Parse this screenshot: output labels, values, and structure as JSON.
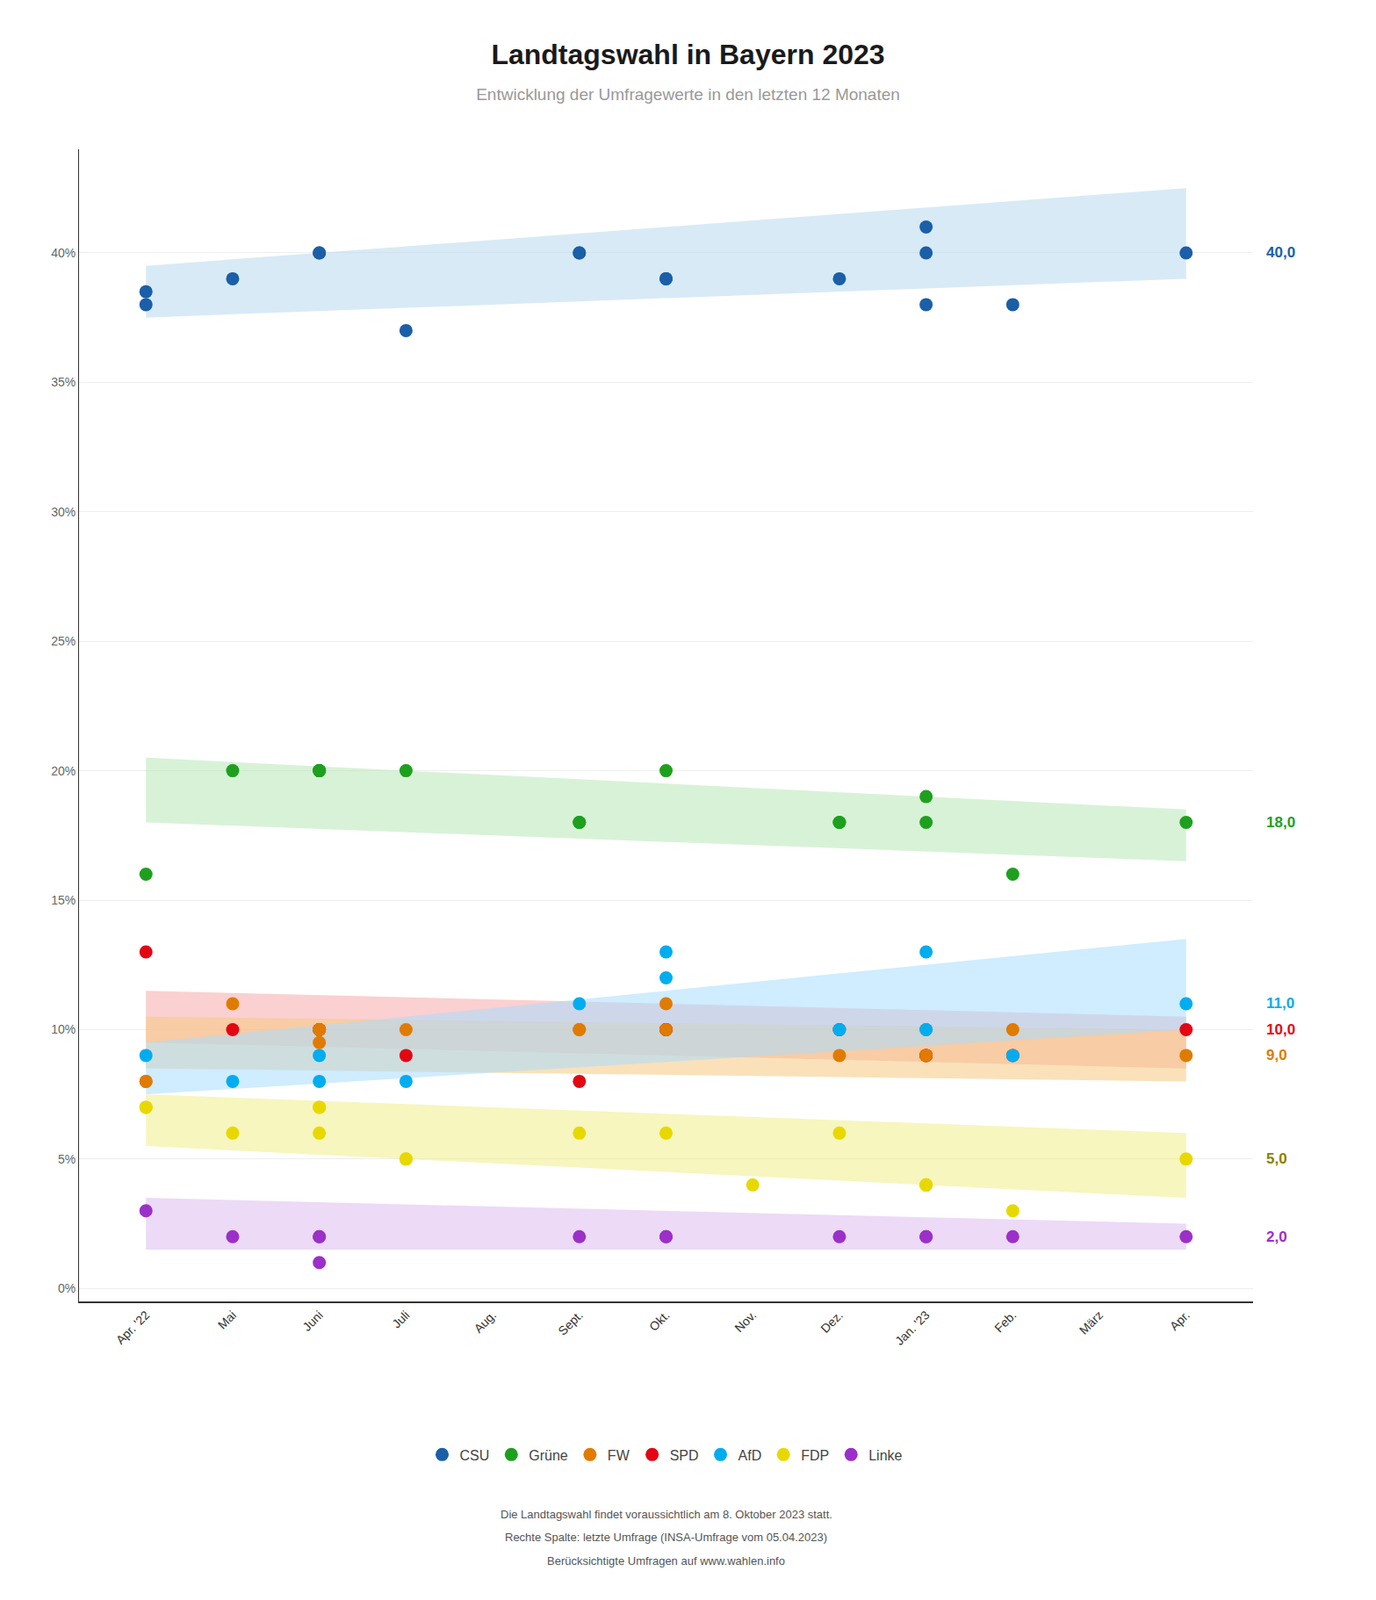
{
  "chart_data": {
    "type": "scatter",
    "title": "Landtagswahl in Bayern 2023",
    "subtitle": "Entwicklung der Umfragewerte in den letzten 12 Monaten",
    "categories": [
      "Apr. '22",
      "Mai",
      "Juni",
      "Juli",
      "Aug.",
      "Sept.",
      "Okt.",
      "Nov.",
      "Dez.",
      "Jan. '23",
      "Feb.",
      "März",
      "Apr."
    ],
    "ylim": [
      -0.5,
      44
    ],
    "yticks": [
      {
        "value": 0,
        "label": "0%"
      },
      {
        "value": 5,
        "label": "5%"
      },
      {
        "value": 10,
        "label": "10%"
      },
      {
        "value": 15,
        "label": "15%"
      },
      {
        "value": 20,
        "label": "20%"
      },
      {
        "value": 25,
        "label": "25%"
      },
      {
        "value": 30,
        "label": "30%"
      },
      {
        "value": 35,
        "label": "35%"
      },
      {
        "value": 40,
        "label": "40%"
      }
    ],
    "grid": "y",
    "legend": "bottom",
    "legend_order": [
      "CSU",
      "Grüne",
      "FW",
      "SPD",
      "AfD",
      "FDP",
      "Linke"
    ],
    "series": [
      {
        "name": "Linke",
        "color": "#9b30c8",
        "band_color": "#ddbbee",
        "band_lo": [
          1.5,
          1.5
        ],
        "band_hi": [
          3.5,
          2.5
        ],
        "x": [
          "Apr. '22",
          "Mai",
          "Juni",
          "Juni",
          "Juni",
          "Sept.",
          "Okt.",
          "Okt.",
          "Dez.",
          "Jan. '23",
          "Jan. '23",
          "Feb.",
          "Apr."
        ],
        "values": [
          3,
          2,
          2,
          1,
          2,
          2,
          2,
          2,
          2,
          2,
          2,
          2,
          2
        ]
      },
      {
        "name": "FDP",
        "color": "#e8d800",
        "band_color": "#eeee88",
        "band_lo": [
          5.5,
          3.5
        ],
        "band_hi": [
          7.5,
          6.0
        ],
        "x": [
          "Apr. '22",
          "Apr. '22",
          "Mai",
          "Juni",
          "Juni",
          "Juni",
          "Juli",
          "Juli",
          "Sept.",
          "Okt.",
          "Nov.",
          "Dez.",
          "Jan. '23",
          "Jan. '23",
          "Jan. '23",
          "Feb.",
          "Apr."
        ],
        "values": [
          7,
          7,
          6,
          7,
          6,
          7,
          5,
          5,
          6,
          6,
          4,
          6,
          4,
          4,
          4,
          3,
          5
        ]
      },
      {
        "name": "SPD",
        "color": "#e30613",
        "band_color": "#f5aaaa",
        "band_lo": [
          9.5,
          8.5
        ],
        "band_hi": [
          11.5,
          10.5
        ],
        "x": [
          "Apr. '22",
          "Mai",
          "Juni",
          "Juni",
          "Juli",
          "Sept.",
          "Okt.",
          "Okt.",
          "Dez.",
          "Jan. '23",
          "Jan. '23",
          "Feb.",
          "Apr."
        ],
        "values": [
          13,
          10,
          10,
          10,
          9,
          8,
          10,
          10,
          10,
          9,
          9,
          9,
          10
        ]
      },
      {
        "name": "FW",
        "color": "#e07b00",
        "band_color": "#f5c880",
        "band_lo": [
          8.5,
          8.0
        ],
        "band_hi": [
          10.5,
          10.0
        ],
        "x": [
          "Apr. '22",
          "Apr. '22",
          "Mai",
          "Juni",
          "Juni",
          "Juni",
          "Juli",
          "Sept.",
          "Sept.",
          "Okt.",
          "Okt.",
          "Dez.",
          "Jan. '23",
          "Jan. '23",
          "Feb.",
          "Apr."
        ],
        "values": [
          8,
          8,
          11,
          10,
          10,
          9.5,
          10,
          10,
          10,
          11,
          10,
          9,
          10,
          9,
          10,
          9
        ]
      },
      {
        "name": "AfD",
        "color": "#00adef",
        "band_color": "#aaddff",
        "band_lo": [
          7.5,
          10.0
        ],
        "band_hi": [
          9.5,
          13.5
        ],
        "x": [
          "Apr. '22",
          "Mai",
          "Juni",
          "Juni",
          "Juli",
          "Sept.",
          "Okt.",
          "Okt.",
          "Dez.",
          "Jan. '23",
          "Jan. '23",
          "Feb.",
          "Apr."
        ],
        "values": [
          9,
          8,
          8,
          9,
          8,
          11,
          12,
          13,
          10,
          13,
          10,
          9,
          11
        ]
      },
      {
        "name": "Grüne",
        "color": "#1ea01e",
        "band_color": "#b8e8b8",
        "band_lo": [
          18.0,
          16.5
        ],
        "band_hi": [
          20.5,
          18.5
        ],
        "x": [
          "Apr. '22",
          "Mai",
          "Juni",
          "Juni",
          "Juni",
          "Juli",
          "Sept.",
          "Sept.",
          "Okt.",
          "Dez.",
          "Dez.",
          "Jan. '23",
          "Jan. '23",
          "Feb.",
          "Apr."
        ],
        "values": [
          16,
          20,
          20,
          20,
          20,
          20,
          18,
          18,
          20,
          18,
          18,
          18,
          19,
          16,
          18
        ]
      },
      {
        "name": "CSU",
        "color": "#1a5fa8",
        "band_color": "#b8d8ef",
        "band_lo": [
          37.5,
          39.0
        ],
        "band_hi": [
          39.5,
          42.5
        ],
        "x": [
          "Apr. '22",
          "Apr. '22",
          "Mai",
          "Juni",
          "Juni",
          "Juli",
          "Sept.",
          "Sept.",
          "Okt.",
          "Okt.",
          "Dez.",
          "Jan. '23",
          "Jan. '23",
          "Jan. '23",
          "Feb.",
          "Apr."
        ],
        "values": [
          38,
          38.5,
          39,
          40,
          40,
          37,
          40,
          40,
          39,
          39,
          39,
          41,
          40,
          38,
          38,
          40
        ]
      }
    ],
    "annotations": [
      {
        "text": "40,0",
        "y": 40.0,
        "color": "#1a5fa8"
      },
      {
        "text": "18,0",
        "y": 18.0,
        "color": "#1ea01e"
      },
      {
        "text": "11,0",
        "y": 11.0,
        "color": "#00adef"
      },
      {
        "text": "10,0",
        "y": 10.0,
        "color": "#e30613"
      },
      {
        "text": "9,0",
        "y": 9.0,
        "color": "#e07b00"
      },
      {
        "text": "5,0",
        "y": 5.0,
        "color": "#8a8000"
      },
      {
        "text": "2,0",
        "y": 2.0,
        "color": "#9b30c8"
      }
    ],
    "footnotes": [
      "Die Landtagswahl findet voraussichtlich am 8. Oktober 2023 statt.",
      "Rechte Spalte: letzte Umfrage (INSA-Umfrage vom 05.04.2023)",
      "Berücksichtigte Umfragen auf www.wahlen.info"
    ]
  }
}
